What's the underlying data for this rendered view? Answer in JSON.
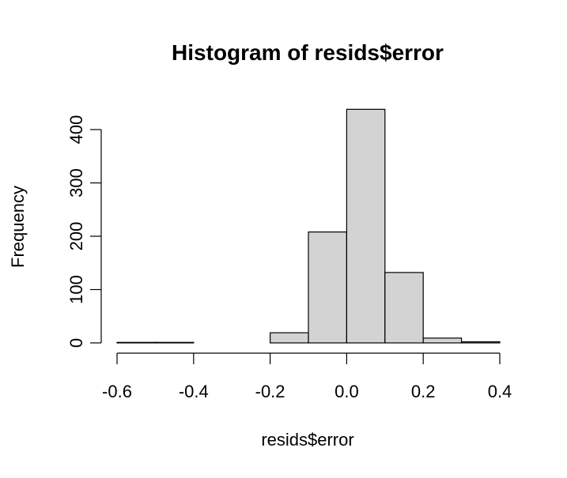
{
  "chart_data": {
    "type": "bar",
    "title": "Histogram of resids$error",
    "xlabel": "resids$error",
    "ylabel": "Frequency",
    "bins": [
      {
        "x0": -0.6,
        "x1": -0.5,
        "count": 1
      },
      {
        "x0": -0.5,
        "x1": -0.4,
        "count": 1
      },
      {
        "x0": -0.4,
        "x1": -0.3,
        "count": 0
      },
      {
        "x0": -0.3,
        "x1": -0.2,
        "count": 0
      },
      {
        "x0": -0.2,
        "x1": -0.1,
        "count": 19
      },
      {
        "x0": -0.1,
        "x1": 0.0,
        "count": 208
      },
      {
        "x0": 0.0,
        "x1": 0.1,
        "count": 438
      },
      {
        "x0": 0.1,
        "x1": 0.2,
        "count": 132
      },
      {
        "x0": 0.2,
        "x1": 0.3,
        "count": 9
      },
      {
        "x0": 0.3,
        "x1": 0.4,
        "count": 2
      }
    ],
    "xlim": [
      -0.6,
      0.4
    ],
    "ylim": [
      0,
      440
    ],
    "x_ticks": [
      -0.6,
      -0.4,
      -0.2,
      0.0,
      0.2,
      0.4
    ],
    "x_tick_labels": [
      "-0.6",
      "-0.4",
      "-0.2",
      "0.0",
      "0.2",
      "0.4"
    ],
    "y_ticks": [
      0,
      100,
      200,
      300,
      400
    ],
    "y_tick_labels": [
      "0",
      "100",
      "200",
      "300",
      "400"
    ],
    "grid": false,
    "bar_color": "#d3d3d3"
  }
}
